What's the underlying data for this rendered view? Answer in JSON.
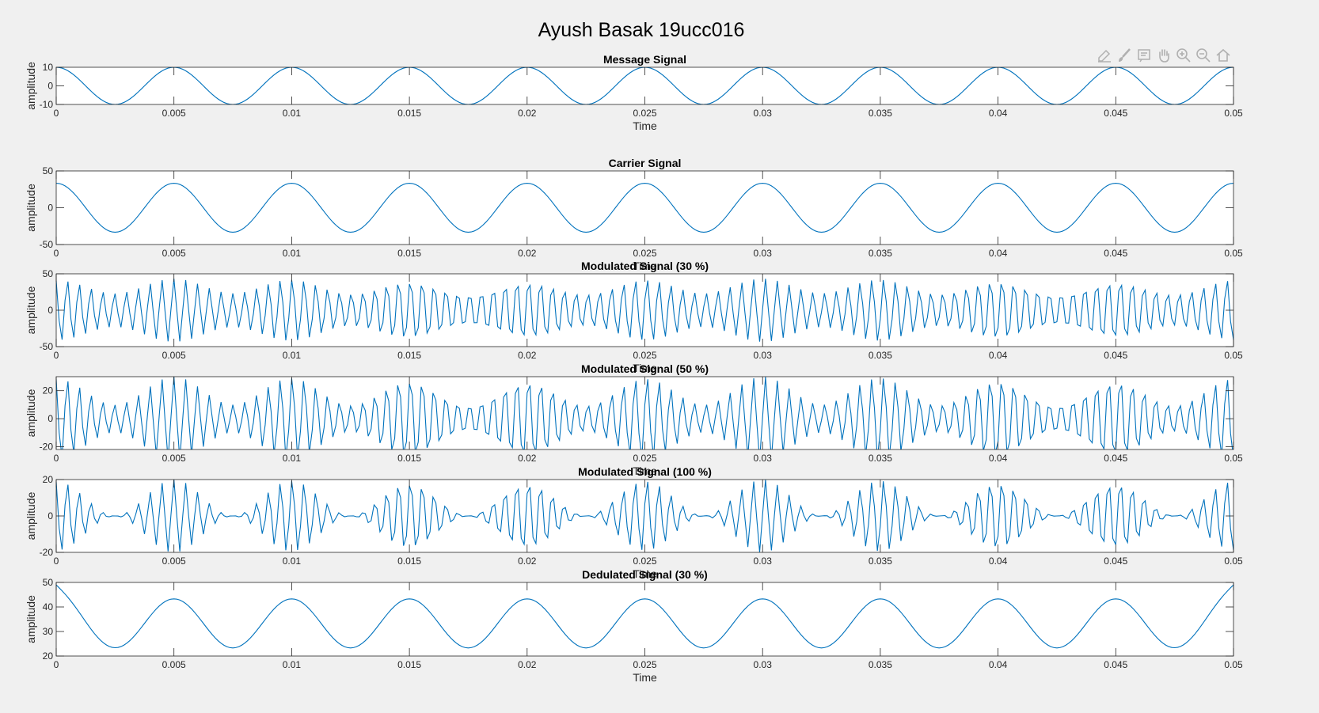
{
  "figure": {
    "title": "Ayush Basak 19ucc016",
    "background": "#f0f0f0",
    "axes_color": "#262626",
    "line_color": "#0072bd"
  },
  "toolbar": {
    "tools": [
      "edit-plot-icon",
      "brush-icon",
      "data-tips-icon",
      "pan-icon",
      "zoom-in-icon",
      "zoom-out-icon",
      "home-icon"
    ]
  },
  "chart_data": [
    {
      "type": "line",
      "title": "Message Signal",
      "xlabel": "Time",
      "ylabel": "amplitude",
      "xlim": [
        0,
        0.05
      ],
      "ylim": [
        -10,
        10
      ],
      "yticks": [
        -10,
        0,
        10
      ],
      "xticks": [
        0,
        0.005,
        0.01,
        0.015,
        0.02,
        0.025,
        0.03,
        0.035,
        0.04,
        0.045,
        0.05
      ],
      "series": [
        {
          "function": "cos",
          "amplitude": 10,
          "frequency_hz": 200,
          "samples": 401
        }
      ]
    },
    {
      "type": "line",
      "title": "Carrier Signal",
      "xlabel": "Time",
      "ylabel": "amplitude",
      "xlim": [
        0,
        0.05
      ],
      "ylim": [
        -50,
        50
      ],
      "yticks": [
        -50,
        0,
        50
      ],
      "xticks": [
        0,
        0.005,
        0.01,
        0.015,
        0.02,
        0.025,
        0.03,
        0.035,
        0.04,
        0.045,
        0.05
      ],
      "series": [
        {
          "function": "cos",
          "amplitude": 33.3,
          "frequency_hz": 200,
          "samples": 401
        }
      ]
    },
    {
      "type": "line",
      "title": "Modulated Signal (30 %)",
      "xlabel": "Time",
      "ylabel": "amplitude",
      "xlim": [
        0,
        0.05
      ],
      "ylim": [
        -50,
        50
      ],
      "yticks": [
        -50,
        0,
        50
      ],
      "xticks": [
        0,
        0.005,
        0.01,
        0.015,
        0.02,
        0.025,
        0.03,
        0.035,
        0.04,
        0.045,
        0.05
      ],
      "series": [
        {
          "function": "am",
          "carrier_amplitude": 33.3,
          "modulation_index": 0.3,
          "message_frequency_hz": 200,
          "carrier_frequency_hz": 2000,
          "sample_rate_hz": 8000,
          "samples": 401
        }
      ]
    },
    {
      "type": "line",
      "title": "Modulated Signal (50 %)",
      "xlabel": "Time",
      "ylabel": "amplitude",
      "xlim": [
        0,
        0.05
      ],
      "ylim": [
        -22,
        30
      ],
      "yticks": [
        -20,
        0,
        20
      ],
      "xticks": [
        0,
        0.005,
        0.01,
        0.015,
        0.02,
        0.025,
        0.03,
        0.035,
        0.04,
        0.045,
        0.05
      ],
      "series": [
        {
          "function": "am",
          "carrier_amplitude": 20,
          "modulation_index": 0.5,
          "message_frequency_hz": 200,
          "carrier_frequency_hz": 2000,
          "sample_rate_hz": 8000,
          "samples": 401
        }
      ]
    },
    {
      "type": "line",
      "title": "Modulated Signal (100 %)",
      "xlabel": "Time",
      "ylabel": "amplitude",
      "xlim": [
        0,
        0.05
      ],
      "ylim": [
        -20,
        20
      ],
      "yticks": [
        -20,
        0,
        20
      ],
      "xticks": [
        0,
        0.005,
        0.01,
        0.015,
        0.02,
        0.025,
        0.03,
        0.035,
        0.04,
        0.045,
        0.05
      ],
      "series": [
        {
          "function": "am",
          "carrier_amplitude": 10,
          "modulation_index": 1.0,
          "message_frequency_hz": 200,
          "carrier_frequency_hz": 2000,
          "sample_rate_hz": 8000,
          "samples": 401
        }
      ]
    },
    {
      "type": "line",
      "title": "Dedulated Signal (30 %)",
      "xlabel": "Time",
      "ylabel": "amplitude",
      "xlim": [
        0,
        0.05
      ],
      "ylim": [
        20,
        50
      ],
      "yticks": [
        20,
        30,
        40,
        50
      ],
      "xticks": [
        0,
        0.005,
        0.01,
        0.015,
        0.02,
        0.025,
        0.03,
        0.035,
        0.04,
        0.045,
        0.05
      ],
      "series": [
        {
          "function": "cos",
          "offset": 33.3,
          "amplitude": 10,
          "frequency_hz": 200,
          "edge_start": 49,
          "samples": 401
        }
      ]
    }
  ]
}
